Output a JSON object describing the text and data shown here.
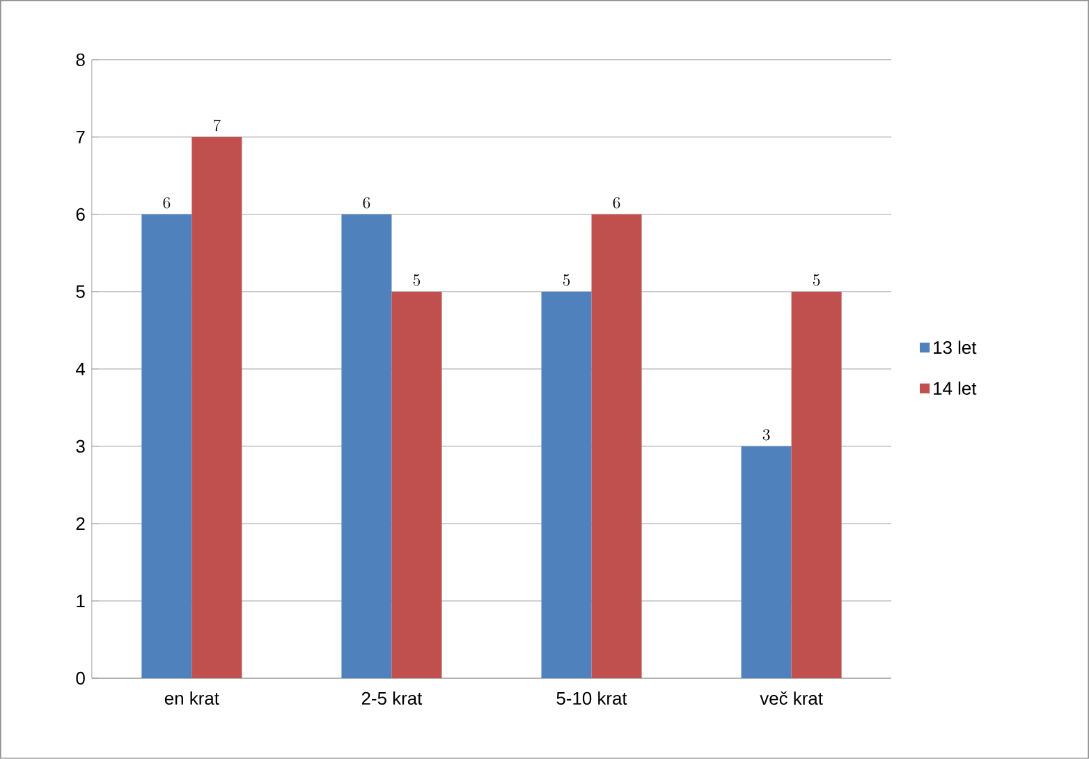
{
  "chart_data": {
    "type": "bar",
    "categories": [
      "en krat",
      "2-5 krat",
      "5-10 krat",
      "več krat"
    ],
    "series": [
      {
        "name": "13 let",
        "color": "#4f81bd",
        "values": [
          6,
          6,
          5,
          3
        ]
      },
      {
        "name": "14 let",
        "color": "#c0504d",
        "values": [
          7,
          5,
          6,
          5
        ]
      }
    ],
    "ylim": [
      0,
      8
    ],
    "yticks": [
      0,
      1,
      2,
      3,
      4,
      5,
      6,
      7,
      8
    ],
    "grid": "y",
    "legend": "right",
    "data_labels": true
  }
}
